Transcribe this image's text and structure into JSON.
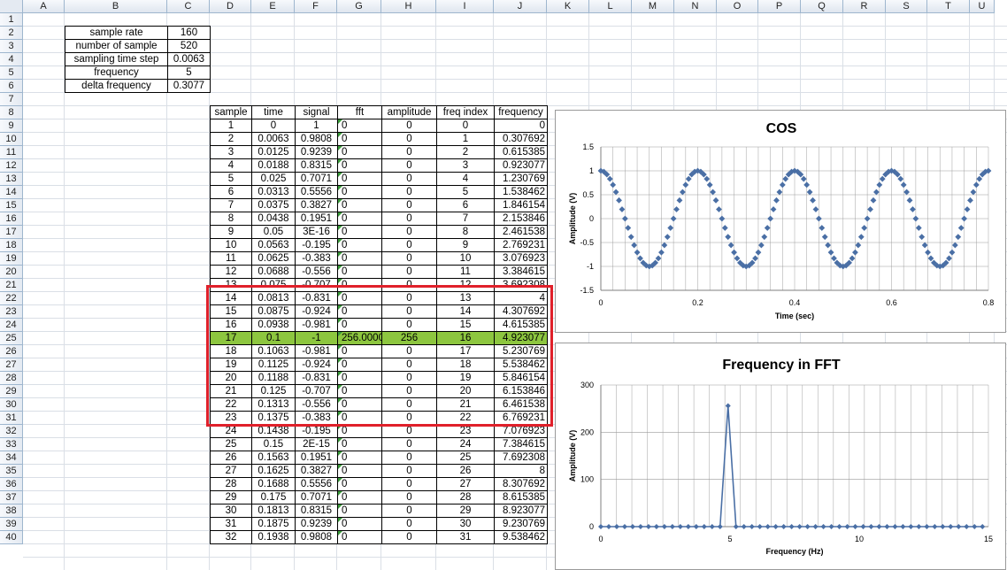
{
  "columns": [
    "A",
    "B",
    "C",
    "D",
    "E",
    "F",
    "G",
    "H",
    "I",
    "J",
    "K",
    "L",
    "M",
    "N",
    "O",
    "P",
    "Q",
    "R",
    "S",
    "T",
    "U"
  ],
  "rows": [
    1,
    2,
    3,
    4,
    5,
    6,
    7,
    8,
    9,
    10,
    11,
    12,
    13,
    14,
    15,
    16,
    17,
    18,
    19,
    20,
    21,
    22,
    23,
    24,
    25,
    26,
    27,
    28,
    29,
    30,
    31,
    32,
    33,
    34,
    35,
    36,
    37,
    38,
    39,
    40
  ],
  "params": [
    {
      "label": "sample rate",
      "value": "160"
    },
    {
      "label": "number of sample",
      "value": "520"
    },
    {
      "label": "sampling time step",
      "value": "0.0063"
    },
    {
      "label": "frequency",
      "value": "5"
    },
    {
      "label": "delta frequency",
      "value": "0.3077"
    }
  ],
  "table": {
    "headers": [
      "sample",
      "time",
      "signal",
      "fft",
      "amplitude",
      "freq index",
      "frequency"
    ],
    "rows": [
      [
        "1",
        "0",
        "1",
        "0",
        "0",
        "0",
        "0"
      ],
      [
        "2",
        "0.0063",
        "0.9808",
        "0",
        "0",
        "1",
        "0.307692"
      ],
      [
        "3",
        "0.0125",
        "0.9239",
        "0",
        "0",
        "2",
        "0.615385"
      ],
      [
        "4",
        "0.0188",
        "0.8315",
        "0",
        "0",
        "3",
        "0.923077"
      ],
      [
        "5",
        "0.025",
        "0.7071",
        "0",
        "0",
        "4",
        "1.230769"
      ],
      [
        "6",
        "0.0313",
        "0.5556",
        "0",
        "0",
        "5",
        "1.538462"
      ],
      [
        "7",
        "0.0375",
        "0.3827",
        "0",
        "0",
        "6",
        "1.846154"
      ],
      [
        "8",
        "0.0438",
        "0.1951",
        "0",
        "0",
        "7",
        "2.153846"
      ],
      [
        "9",
        "0.05",
        "3E-16",
        "0",
        "0",
        "8",
        "2.461538"
      ],
      [
        "10",
        "0.0563",
        "-0.195",
        "0",
        "0",
        "9",
        "2.769231"
      ],
      [
        "11",
        "0.0625",
        "-0.383",
        "0",
        "0",
        "10",
        "3.076923"
      ],
      [
        "12",
        "0.0688",
        "-0.556",
        "0",
        "0",
        "11",
        "3.384615"
      ],
      [
        "13",
        "0.075",
        "-0.707",
        "0",
        "0",
        "12",
        "3.692308"
      ],
      [
        "14",
        "0.0813",
        "-0.831",
        "0",
        "0",
        "13",
        "4"
      ],
      [
        "15",
        "0.0875",
        "-0.924",
        "0",
        "0",
        "14",
        "4.307692"
      ],
      [
        "16",
        "0.0938",
        "-0.981",
        "0",
        "0",
        "15",
        "4.615385"
      ],
      [
        "17",
        "0.1",
        "-1",
        "256.00000",
        "256",
        "16",
        "4.923077"
      ],
      [
        "18",
        "0.1063",
        "-0.981",
        "0",
        "0",
        "17",
        "5.230769"
      ],
      [
        "19",
        "0.1125",
        "-0.924",
        "0",
        "0",
        "18",
        "5.538462"
      ],
      [
        "20",
        "0.1188",
        "-0.831",
        "0",
        "0",
        "19",
        "5.846154"
      ],
      [
        "21",
        "0.125",
        "-0.707",
        "0",
        "0",
        "20",
        "6.153846"
      ],
      [
        "22",
        "0.1313",
        "-0.556",
        "0",
        "0",
        "21",
        "6.461538"
      ],
      [
        "23",
        "0.1375",
        "-0.383",
        "0",
        "0",
        "22",
        "6.769231"
      ],
      [
        "24",
        "0.1438",
        "-0.195",
        "0",
        "0",
        "23",
        "7.076923"
      ],
      [
        "25",
        "0.15",
        "2E-15",
        "0",
        "0",
        "24",
        "7.384615"
      ],
      [
        "26",
        "0.1563",
        "0.1951",
        "0",
        "0",
        "25",
        "7.692308"
      ],
      [
        "27",
        "0.1625",
        "0.3827",
        "0",
        "0",
        "26",
        "8"
      ],
      [
        "28",
        "0.1688",
        "0.5556",
        "0",
        "0",
        "27",
        "8.307692"
      ],
      [
        "29",
        "0.175",
        "0.7071",
        "0",
        "0",
        "28",
        "8.615385"
      ],
      [
        "30",
        "0.1813",
        "0.8315",
        "0",
        "0",
        "29",
        "8.923077"
      ],
      [
        "31",
        "0.1875",
        "0.9239",
        "0",
        "0",
        "30",
        "9.230769"
      ],
      [
        "32",
        "0.1938",
        "0.9808",
        "0",
        "0",
        "31",
        "9.538462"
      ]
    ],
    "highlight_sample": "17",
    "highlight_color": "#8dc63f"
  },
  "chart_data": [
    {
      "type": "scatter",
      "title": "COS",
      "xlabel": "Time (sec)",
      "ylabel": "Amplitude (V)",
      "xlim": [
        0,
        0.8
      ],
      "ylim": [
        -1.5,
        1.5
      ],
      "xticks": [
        "0",
        "0.2",
        "0.4",
        "0.6",
        "0.8"
      ],
      "yticks": [
        "1.5",
        "1",
        "0.5",
        "0",
        "-0.5",
        "-1",
        "-1.5"
      ],
      "marker_color": "#4a6fa5",
      "grid": true,
      "series": [
        {
          "x": [
            0,
            0.00625,
            0.0125,
            0.01875,
            0.025,
            0.03125,
            0.0375,
            0.04375,
            0.05,
            0.05625,
            0.0625,
            0.06875,
            0.075,
            0.08125,
            0.0875,
            0.09375,
            0.1,
            0.10625,
            0.1125,
            0.11875,
            0.125,
            0.13125,
            0.1375,
            0.14375,
            0.15,
            0.15625,
            0.1625,
            0.16875,
            0.175,
            0.18125,
            0.1875,
            0.19375,
            0.2,
            0.20625,
            0.2125,
            0.21875,
            0.225,
            0.23125,
            0.2375,
            0.24375,
            0.25,
            0.25625,
            0.2625,
            0.26875,
            0.275,
            0.28125,
            0.2875,
            0.29375,
            0.3,
            0.30625,
            0.3125,
            0.31875,
            0.325,
            0.33125,
            0.3375,
            0.34375,
            0.35,
            0.35625,
            0.3625,
            0.36875,
            0.375,
            0.38125,
            0.3875,
            0.39375,
            0.4,
            0.40625,
            0.4125,
            0.41875,
            0.425,
            0.43125,
            0.4375,
            0.44375,
            0.45,
            0.45625,
            0.4625,
            0.46875,
            0.475,
            0.48125,
            0.4875,
            0.49375,
            0.5,
            0.50625,
            0.5125,
            0.51875,
            0.525,
            0.53125,
            0.5375,
            0.54375,
            0.55,
            0.55625,
            0.5625,
            0.56875,
            0.575,
            0.58125,
            0.5875,
            0.59375,
            0.6,
            0.60625,
            0.6125,
            0.61875,
            0.625,
            0.63125,
            0.6375,
            0.64375,
            0.65,
            0.65625,
            0.6625,
            0.66875,
            0.675,
            0.68125,
            0.6875,
            0.69375,
            0.7,
            0.70625,
            0.7125,
            0.71875,
            0.725,
            0.73125,
            0.7375,
            0.74375,
            0.75,
            0.75625,
            0.7625,
            0.76875,
            0.775,
            0.78125,
            0.7875,
            0.79375,
            0.8
          ],
          "y": [
            1,
            0.981,
            0.924,
            0.831,
            0.707,
            0.556,
            0.383,
            0.195,
            0,
            -0.195,
            -0.383,
            -0.556,
            -0.707,
            -0.831,
            -0.924,
            -0.981,
            -1,
            -0.981,
            -0.924,
            -0.831,
            -0.707,
            -0.556,
            -0.383,
            -0.195,
            0,
            0.195,
            0.383,
            0.556,
            0.707,
            0.831,
            0.924,
            0.981,
            1,
            0.981,
            0.924,
            0.831,
            0.707,
            0.556,
            0.383,
            0.195,
            0,
            -0.195,
            -0.383,
            -0.556,
            -0.707,
            -0.831,
            -0.924,
            -0.981,
            -1,
            -0.981,
            -0.924,
            -0.831,
            -0.707,
            -0.556,
            -0.383,
            -0.195,
            0,
            0.195,
            0.383,
            0.556,
            0.707,
            0.831,
            0.924,
            0.981,
            1,
            0.981,
            0.924,
            0.831,
            0.707,
            0.556,
            0.383,
            0.195,
            0,
            -0.195,
            -0.383,
            -0.556,
            -0.707,
            -0.831,
            -0.924,
            -0.981,
            -1,
            -0.981,
            -0.924,
            -0.831,
            -0.707,
            -0.556,
            -0.383,
            -0.195,
            0,
            0.195,
            0.383,
            0.556,
            0.707,
            0.831,
            0.924,
            0.981,
            1,
            0.981,
            0.924,
            0.831,
            0.707,
            0.556,
            0.383,
            0.195,
            0,
            -0.195,
            -0.383,
            -0.556,
            -0.707,
            -0.831,
            -0.924,
            -0.981,
            -1,
            -0.981,
            -0.924,
            -0.831,
            -0.707,
            -0.556,
            -0.383,
            -0.195,
            0,
            0.195,
            0.383,
            0.556,
            0.707,
            0.831,
            0.924,
            0.981,
            1
          ]
        }
      ]
    },
    {
      "type": "line",
      "title": "Frequency in FFT",
      "xlabel": "Frequency (Hz)",
      "ylabel": "Amplitude (V)",
      "xlim": [
        0,
        15
      ],
      "ylim": [
        0,
        300
      ],
      "xticks": [
        "0",
        "5",
        "10",
        "15"
      ],
      "yticks": [
        "300",
        "200",
        "100",
        "0"
      ],
      "marker_color": "#4a6fa5",
      "grid": true,
      "series": [
        {
          "x": [
            0,
            0.307692,
            0.615385,
            0.923077,
            1.230769,
            1.538462,
            1.846154,
            2.153846,
            2.461538,
            2.769231,
            3.076923,
            3.384615,
            3.692308,
            4,
            4.307692,
            4.615385,
            4.923077,
            5.230769,
            5.538462,
            5.846154,
            6.153846,
            6.461538,
            6.769231,
            7.076923,
            7.384615,
            7.692308,
            8,
            8.307692,
            8.615385,
            8.923077,
            9.230769,
            9.538462,
            9.846154,
            10.153846,
            10.461538,
            10.769231,
            11.076923,
            11.384615,
            11.692308,
            12,
            12.307692,
            12.615385,
            12.923077,
            13.230769,
            13.538462,
            13.846154,
            14.153846,
            14.461538,
            14.769231
          ],
          "y": [
            0,
            0,
            0,
            0,
            0,
            0,
            0,
            0,
            0,
            0,
            0,
            0,
            0,
            0,
            0,
            0,
            256,
            0,
            0,
            0,
            0,
            0,
            0,
            0,
            0,
            0,
            0,
            0,
            0,
            0,
            0,
            0,
            0,
            0,
            0,
            0,
            0,
            0,
            0,
            0,
            0,
            0,
            0,
            0,
            0,
            0,
            0,
            0,
            0
          ]
        }
      ]
    }
  ]
}
